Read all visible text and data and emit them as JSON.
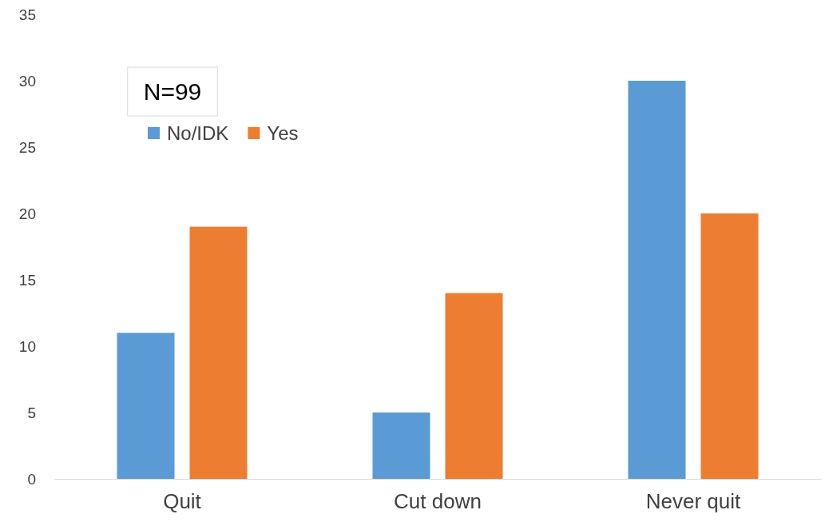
{
  "chart_data": {
    "type": "bar",
    "categories": [
      "Quit",
      "Cut down",
      "Never quit"
    ],
    "series": [
      {
        "name": "No/IDK",
        "color": "#5b9bd5",
        "values": [
          11,
          5,
          30
        ]
      },
      {
        "name": "Yes",
        "color": "#ed7d31",
        "values": [
          19,
          14,
          20
        ]
      }
    ],
    "ylim": [
      0,
      35
    ],
    "yticks": [
      0,
      5,
      10,
      15,
      20,
      25,
      30,
      35
    ],
    "grid": false,
    "legend": "top left",
    "annotations": [
      "N=99"
    ]
  }
}
